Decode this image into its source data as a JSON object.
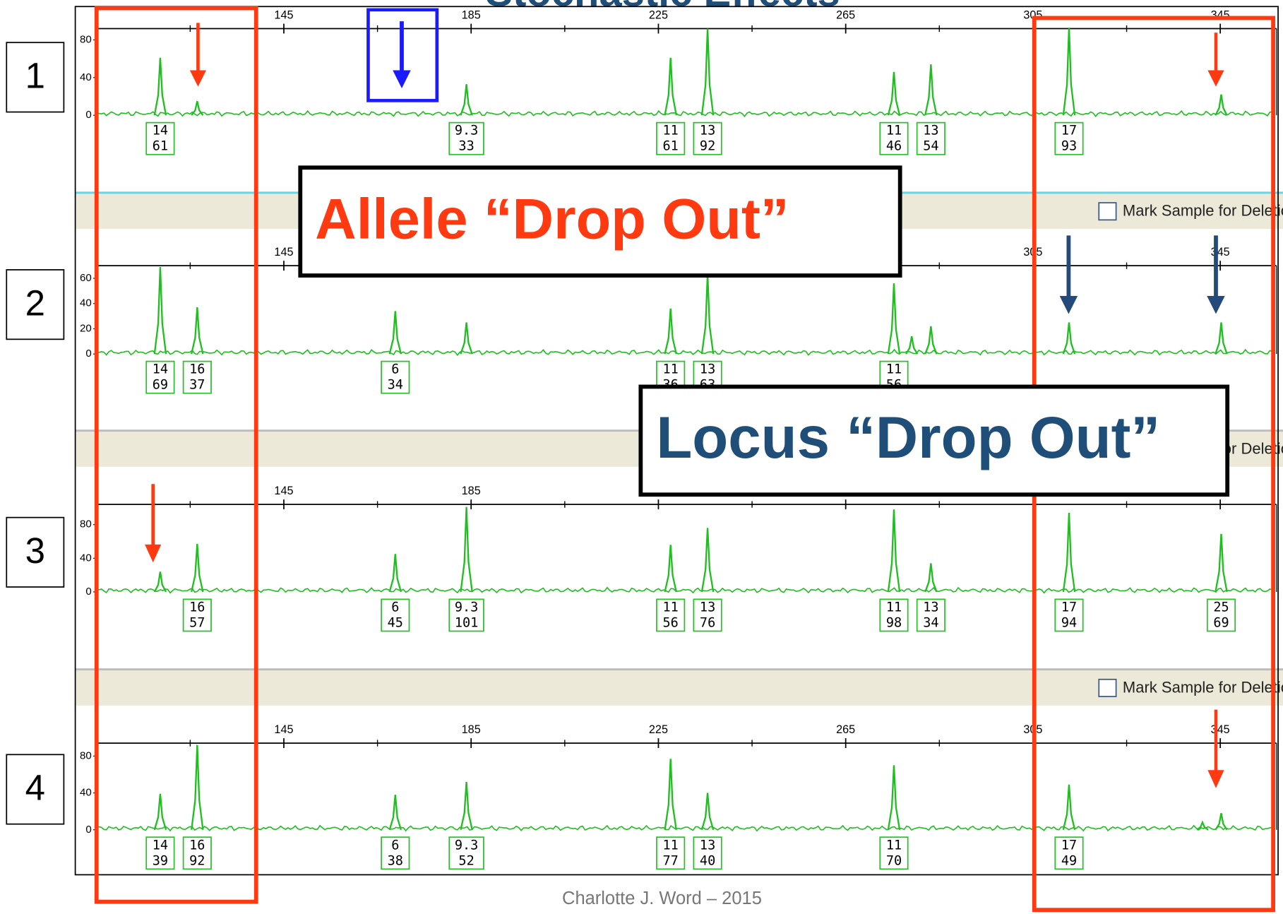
{
  "title": "Stochastic Effects",
  "allele_callout": "Allele “Drop Out”",
  "locus_callout": "Locus “Drop Out”",
  "mark_sample": "Mark Sample for Deletion",
  "credit": "Charlotte J. Word – 2015",
  "chart_data": [
    {
      "type": "peaks",
      "label": "1",
      "color": "#1fbf1f",
      "xlim": [
        105,
        357
      ],
      "xticks": [
        145,
        185,
        225,
        265,
        305,
        345
      ],
      "xminor": [
        125,
        165,
        205,
        245,
        285,
        325
      ],
      "ylim": [
        0,
        92
      ],
      "yticks": [
        0,
        40,
        80
      ],
      "peaks": {
        "x": [
          118.6,
          126.5,
          184.0,
          227.6,
          235.5,
          275.3,
          283.2,
          312.7,
          345.2
        ],
        "values": [
          61,
          15,
          33,
          61,
          92,
          46,
          54,
          93,
          22
        ],
        "alleles": [
          "14",
          null,
          "9.3",
          "11",
          "13",
          "11",
          "13",
          "17",
          null
        ]
      }
    },
    {
      "type": "peaks",
      "label": "2",
      "color": "#1fbf1f",
      "xlim": [
        105,
        357
      ],
      "xticks": [
        145,
        185,
        225,
        265,
        305,
        345
      ],
      "xminor": [
        125,
        165,
        205,
        245,
        285,
        325
      ],
      "ylim": [
        0,
        70
      ],
      "yticks": [
        0,
        20,
        40,
        60
      ],
      "peaks": {
        "x": [
          118.6,
          126.5,
          168.8,
          184.0,
          227.6,
          235.5,
          275.3,
          279.1,
          283.2,
          312.7,
          345.2
        ],
        "values": [
          69,
          37,
          34,
          25,
          36,
          63,
          56,
          14,
          22,
          25,
          25
        ],
        "alleles": [
          "14",
          "16",
          "6",
          null,
          "11",
          "13",
          "11",
          null,
          null,
          null,
          null
        ]
      }
    },
    {
      "type": "peaks",
      "label": "3",
      "color": "#1fbf1f",
      "xlim": [
        105,
        357
      ],
      "xticks": [
        145,
        185,
        225,
        265,
        305,
        345
      ],
      "xminor": [
        125,
        165,
        205,
        245,
        285,
        325
      ],
      "ylim": [
        0,
        104
      ],
      "yticks": [
        0,
        40,
        80
      ],
      "peaks": {
        "x": [
          118.6,
          126.5,
          168.8,
          184.0,
          227.6,
          235.5,
          275.3,
          283.2,
          312.7,
          345.2
        ],
        "values": [
          24,
          57,
          45,
          101,
          56,
          76,
          98,
          34,
          94,
          69
        ],
        "alleles": [
          null,
          "16",
          "6",
          "9.3",
          "11",
          "13",
          "11",
          "13",
          "17",
          "25"
        ]
      }
    },
    {
      "type": "peaks",
      "label": "4",
      "color": "#1fbf1f",
      "xlim": [
        105,
        357
      ],
      "xticks": [
        145,
        185,
        225,
        265,
        305,
        345
      ],
      "xminor": [
        125,
        165,
        205,
        245,
        285,
        325
      ],
      "ylim": [
        0,
        94
      ],
      "yticks": [
        0,
        40,
        80
      ],
      "peaks": {
        "x": [
          118.6,
          126.5,
          168.8,
          184.0,
          227.6,
          235.5,
          275.3,
          312.7,
          341.2,
          345.2
        ],
        "values": [
          39,
          92,
          38,
          52,
          77,
          40,
          70,
          49,
          8,
          18
        ],
        "alleles": [
          "14",
          "16",
          "6",
          "9.3",
          "11",
          "13",
          "11",
          "17",
          null,
          null
        ]
      }
    }
  ]
}
